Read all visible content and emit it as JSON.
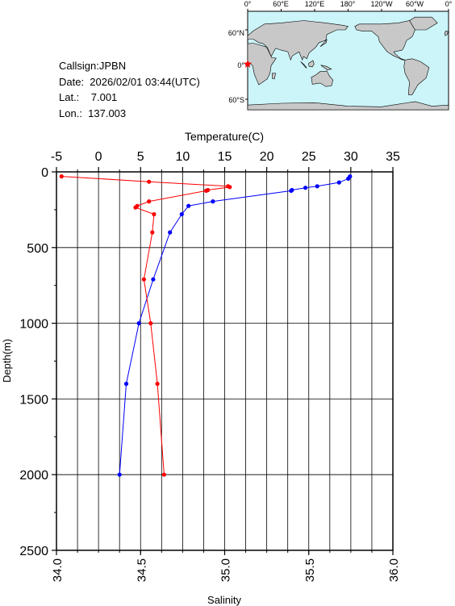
{
  "info": {
    "callsign": "Callsign:JPBN",
    "date": "Date:  2026/02/01 03:44(UTC)",
    "lat": "Lat.:    7.001",
    "lon": "Lon.:  137.003"
  },
  "map": {
    "lon_labels": [
      "0°",
      "60°E",
      "120°E",
      "180°",
      "120°W",
      "60°W",
      "0°"
    ],
    "lat_labels": [
      "60°N",
      "0°",
      "60°S"
    ],
    "ocean_color": "#ccf5fa",
    "land_color": "#c8c8c8",
    "marker_color": "#ff0000",
    "marker_icon": "star-icon"
  },
  "chart_data": {
    "type": "line",
    "top_axis": {
      "label": "Temperature(C)",
      "range": [
        -5,
        35
      ],
      "ticks": [
        "-5",
        "0",
        "5",
        "10",
        "15",
        "20",
        "25",
        "30",
        "35"
      ]
    },
    "bottom_axis": {
      "label": "Salinity",
      "range": [
        34.0,
        36.0
      ],
      "ticks": [
        "34.0",
        "34.5",
        "35.0",
        "35.5",
        "36.0"
      ]
    },
    "y_axis": {
      "label": "Depth(m)",
      "range": [
        0,
        2500
      ],
      "ticks": [
        "0",
        "500",
        "1000",
        "1500",
        "2000",
        "2500"
      ],
      "inverted": true
    },
    "grid": true,
    "series": [
      {
        "color": "#0000ff",
        "axis": "temperature",
        "points": [
          {
            "x": 29.9,
            "y": 30
          },
          {
            "x": 29.7,
            "y": 45
          },
          {
            "x": 28.6,
            "y": 70
          },
          {
            "x": 26.0,
            "y": 95
          },
          {
            "x": 24.6,
            "y": 105
          },
          {
            "x": 23.0,
            "y": 120
          },
          {
            "x": 22.9,
            "y": 125
          },
          {
            "x": 13.6,
            "y": 195
          },
          {
            "x": 10.7,
            "y": 225
          },
          {
            "x": 9.9,
            "y": 280
          },
          {
            "x": 8.5,
            "y": 400
          },
          {
            "x": 6.5,
            "y": 710
          },
          {
            "x": 4.8,
            "y": 1000
          },
          {
            "x": 3.3,
            "y": 1400
          },
          {
            "x": 2.5,
            "y": 2000
          }
        ]
      },
      {
        "color": "#ff0000",
        "axis": "salinity",
        "points": [
          {
            "x": 34.03,
            "y": 30
          },
          {
            "x": 34.55,
            "y": 65
          },
          {
            "x": 35.02,
            "y": 95
          },
          {
            "x": 35.03,
            "y": 100
          },
          {
            "x": 34.9,
            "y": 120
          },
          {
            "x": 34.89,
            "y": 125
          },
          {
            "x": 34.55,
            "y": 195
          },
          {
            "x": 34.48,
            "y": 225
          },
          {
            "x": 34.47,
            "y": 235
          },
          {
            "x": 34.58,
            "y": 280
          },
          {
            "x": 34.57,
            "y": 400
          },
          {
            "x": 34.52,
            "y": 710
          },
          {
            "x": 34.56,
            "y": 1000
          },
          {
            "x": 34.6,
            "y": 1400
          },
          {
            "x": 34.64,
            "y": 2000
          }
        ]
      }
    ]
  }
}
